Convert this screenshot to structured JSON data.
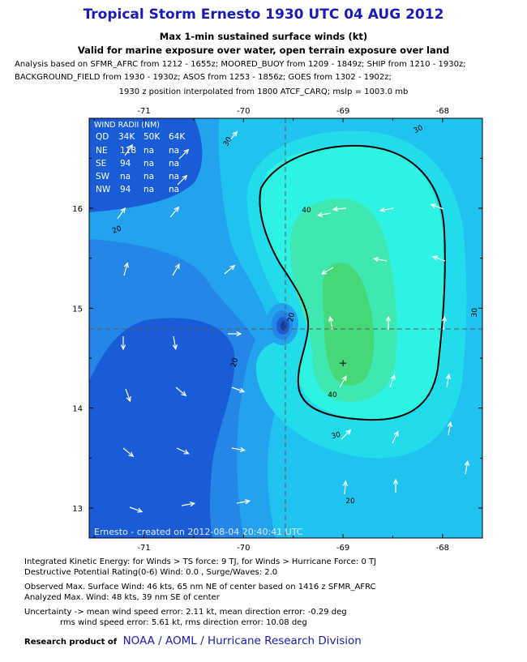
{
  "header": {
    "title": "Tropical Storm Ernesto 1930 UTC 04 AUG 2012",
    "subtitle1": "Max 1-min sustained surface winds (kt)",
    "subtitle2": "Valid for marine exposure over water, open terrain exposure over land",
    "analysis_line1": "Analysis based on SFMR_AFRC from 1212 - 1655z; MOORED_BUOY from 1209 - 1849z; SHIP from 1210 - 1930z;",
    "analysis_line2": "BACKGROUND_FIELD from 1930 - 1930z; ASOS from 1253 - 1856z; GOES from 1302 - 1902z;",
    "position_line": "1930 z position interpolated from 1800 ATCF_CARQ; mslp = 1003.0 mb"
  },
  "colors": {
    "title": "#1a1ab8",
    "shade_lt15": "#1a5cd8",
    "shade_15_20": "#2486e6",
    "shade_20_25": "#23a2ee",
    "shade_25_30": "#20c2f0",
    "shade_30_35": "#22dcec",
    "shade_35_40": "#2ef2e2",
    "shade_40_45": "#3ee8b0",
    "shade_45_plus": "#46d878"
  },
  "chart_data": {
    "type": "contour",
    "xlabel": "",
    "ylabel": "",
    "xlim": [
      -71.55,
      -67.6
    ],
    "ylim": [
      12.7,
      16.9
    ],
    "x_ticks": [
      "-71",
      "-70",
      "-69",
      "-68"
    ],
    "y_ticks": [
      "13",
      "14",
      "15",
      "16"
    ],
    "contour_labels": [
      "30",
      "20",
      "40",
      "30",
      "30",
      "20",
      "40",
      "20",
      "30",
      "20"
    ],
    "max_wind_marker": {
      "lon": -69.0,
      "lat": 14.45
    },
    "storm_center": {
      "lon": -69.75,
      "lat": 14.73
    },
    "wind_radii_table": {
      "title": "WIND RADII (NM)",
      "header": [
        "QD",
        "34K",
        "50K",
        "64K"
      ],
      "rows": [
        [
          "NE",
          "118",
          "na",
          "na"
        ],
        [
          "SE",
          "94",
          "na",
          "na"
        ],
        [
          "SW",
          "na",
          "na",
          "na"
        ],
        [
          "NW",
          "94",
          "na",
          "na"
        ]
      ]
    },
    "credit": "Ernesto - created on 2012-08-04 20:40:41 UTC"
  },
  "footer": {
    "ike": "Integrated Kinetic Energy: for Winds > TS force: 9 TJ, for Winds > Hurricane Force: 0 TJ",
    "dpr": "Destructive Potential Rating(0-6)   Wind: 0.0 , Surge/Waves: 2.0",
    "obs": "Observed Max. Surface Wind: 46 kts, 65 nm NE of center based on 1416 z SFMR_AFRC",
    "analyzed": "Analyzed Max. Wind: 48 kts, 39 nm  SE of center",
    "uncert1": "Uncertainty -> mean wind speed error: 2.11 kt, mean direction error:  -0.29 deg",
    "uncert2": "rms wind speed error: 5.61 kt, rms direction error: 10.08 deg",
    "research_label": "Research product of",
    "noaa": "NOAA  /  AOML  /  Hurricane Research Division"
  }
}
